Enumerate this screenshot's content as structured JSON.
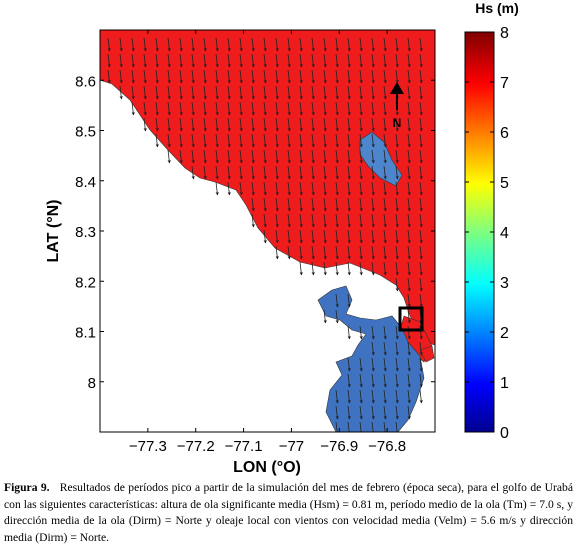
{
  "chart_data": {
    "type": "heatmap",
    "title": "",
    "xlabel": "LON (°O)",
    "ylabel": "LAT (°N)",
    "xlim": [
      -77.4,
      -76.7
    ],
    "ylim": [
      7.9,
      8.7
    ],
    "x_ticks": [
      -77.3,
      -77.2,
      -77.1,
      -77.0,
      -76.9,
      -76.8
    ],
    "x_tick_labels": [
      "−77.3",
      "−77.2",
      "−77.1",
      "−77",
      "−76.9",
      "−76.8"
    ],
    "y_ticks": [
      8.0,
      8.1,
      8.2,
      8.3,
      8.4,
      8.5,
      8.6
    ],
    "y_tick_labels": [
      "8",
      "8.1",
      "8.2",
      "8.3",
      "8.4",
      "8.5",
      "8.6"
    ],
    "colorbar": {
      "label": "Hs (m)",
      "range": [
        0,
        8
      ],
      "ticks": [
        0,
        1,
        2,
        3,
        4,
        5,
        6,
        7,
        8
      ],
      "tick_labels": [
        "0",
        "1",
        "2",
        "3",
        "4",
        "5",
        "6",
        "7",
        "8"
      ],
      "colormap": "jet"
    },
    "regions": [
      {
        "name": "open gulf",
        "approx_value": 7.3
      },
      {
        "name": "southern inner gulf",
        "approx_value": 1.3
      },
      {
        "name": "central patch",
        "approx_value": 1.5
      }
    ],
    "vector_direction": "southward (towards south)",
    "north_arrow_label": "N",
    "colors": {
      "high": "#ee1c1c",
      "low": "#3f73c2",
      "land": "#ffffff"
    }
  },
  "caption": {
    "label": "Figura 9.",
    "text": "Resultados de períodos pico a partir de la simulación del mes de febrero (época seca), para el golfo de Urabá con las siguientes características: altura de ola significante media (Hsm) = 0.81 m, período medio de la ola (Tm) = 7.0 s, y dirección media de la ola (Dirm) = Norte y oleaje local con vientos con velocidad media (Velm) = 5.6 m/s y dirección media (Dirm) = Norte."
  }
}
